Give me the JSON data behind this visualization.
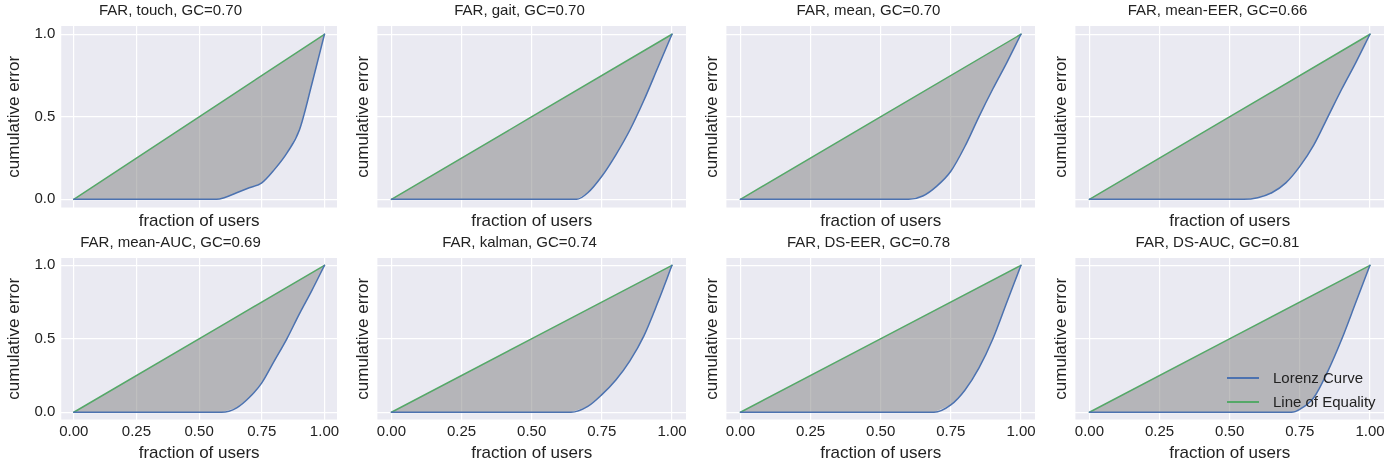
{
  "chart_data": [
    {
      "type": "line",
      "title": "FAR, touch, GC=0.70",
      "xlabel": "fraction of users",
      "ylabel": "cumulative error",
      "xlim": [
        -0.05,
        1.05
      ],
      "ylim": [
        -0.05,
        1.05
      ],
      "xticks": [
        0,
        0.25,
        0.5,
        0.75,
        1
      ],
      "yticks": [
        {
          "value": 0,
          "label": "0.0"
        },
        {
          "value": 0.5,
          "label": "0.5"
        },
        {
          "value": 1,
          "label": "1.0"
        }
      ],
      "tick_labels": "y",
      "grid": true,
      "legend": false,
      "series": [
        {
          "color": "#4c72b0",
          "x": [
            0,
            0.57,
            0.6,
            0.65,
            0.7,
            0.75,
            0.8,
            0.85,
            0.9,
            0.95,
            1
          ],
          "values": [
            0,
            0,
            0.01,
            0.04,
            0.07,
            0.1,
            0.18,
            0.28,
            0.42,
            0.7,
            1
          ]
        },
        {
          "color": "#55a868",
          "x": [
            0,
            1
          ],
          "values": [
            0,
            1
          ]
        }
      ]
    },
    {
      "type": "line",
      "title": "FAR, gait, GC=0.70",
      "xlabel": "fraction of users",
      "ylabel": "cumulative error",
      "xlim": [
        -0.05,
        1.05
      ],
      "ylim": [
        -0.05,
        1.05
      ],
      "xticks": [
        0,
        0.25,
        0.5,
        0.75,
        1
      ],
      "yticks": [
        0,
        0.5,
        1
      ],
      "tick_labels": false,
      "grid": true,
      "legend": false,
      "series": [
        {
          "color": "#4c72b0",
          "x": [
            0,
            0.66,
            0.7,
            0.75,
            0.8,
            0.85,
            0.9,
            0.95,
            1
          ],
          "values": [
            0,
            0,
            0.04,
            0.14,
            0.27,
            0.42,
            0.6,
            0.8,
            1
          ]
        },
        {
          "color": "#55a868",
          "x": [
            0,
            1
          ],
          "values": [
            0,
            1
          ]
        }
      ]
    },
    {
      "type": "line",
      "title": "FAR, mean, GC=0.70",
      "xlabel": "fraction of users",
      "ylabel": "cumulative error",
      "xlim": [
        -0.05,
        1.05
      ],
      "ylim": [
        -0.05,
        1.05
      ],
      "xticks": [
        0,
        0.25,
        0.5,
        0.75,
        1
      ],
      "yticks": [
        0,
        0.5,
        1
      ],
      "tick_labels": false,
      "grid": true,
      "legend": false,
      "series": [
        {
          "color": "#4c72b0",
          "x": [
            0,
            0.6,
            0.65,
            0.7,
            0.75,
            0.8,
            0.85,
            0.9,
            0.95,
            1
          ],
          "values": [
            0,
            0,
            0.02,
            0.08,
            0.17,
            0.32,
            0.5,
            0.67,
            0.83,
            1
          ]
        },
        {
          "color": "#55a868",
          "x": [
            0,
            1
          ],
          "values": [
            0,
            1
          ]
        }
      ]
    },
    {
      "type": "line",
      "title": "FAR, mean-EER, GC=0.66",
      "xlabel": "fraction of users",
      "ylabel": "cumulative error",
      "xlim": [
        -0.05,
        1.05
      ],
      "ylim": [
        -0.05,
        1.05
      ],
      "xticks": [
        0,
        0.25,
        0.5,
        0.75,
        1
      ],
      "yticks": [
        0,
        0.5,
        1
      ],
      "tick_labels": false,
      "grid": true,
      "legend": false,
      "series": [
        {
          "color": "#4c72b0",
          "x": [
            0,
            0.55,
            0.6,
            0.65,
            0.7,
            0.75,
            0.8,
            0.85,
            0.9,
            0.95,
            1
          ],
          "values": [
            0,
            0,
            0.01,
            0.04,
            0.1,
            0.2,
            0.33,
            0.5,
            0.67,
            0.83,
            1
          ]
        },
        {
          "color": "#55a868",
          "x": [
            0,
            1
          ],
          "values": [
            0,
            1
          ]
        }
      ]
    },
    {
      "type": "line",
      "title": "FAR, mean-AUC, GC=0.69",
      "xlabel": "fraction of users",
      "ylabel": "cumulative error",
      "xlim": [
        -0.05,
        1.05
      ],
      "ylim": [
        -0.05,
        1.05
      ],
      "xticks": [
        {
          "value": 0,
          "label": "0.00"
        },
        {
          "value": 0.25,
          "label": "0.25"
        },
        {
          "value": 0.5,
          "label": "0.50"
        },
        {
          "value": 0.75,
          "label": "0.75"
        },
        {
          "value": 1,
          "label": "1.00"
        }
      ],
      "yticks": [
        {
          "value": 0,
          "label": "0.0"
        },
        {
          "value": 0.5,
          "label": "0.5"
        },
        {
          "value": 1,
          "label": "1.0"
        }
      ],
      "grid": true,
      "legend": false,
      "series": [
        {
          "color": "#4c72b0",
          "x": [
            0,
            0.59,
            0.65,
            0.7,
            0.75,
            0.8,
            0.85,
            0.9,
            0.95,
            1
          ],
          "values": [
            0,
            0,
            0.03,
            0.1,
            0.2,
            0.35,
            0.5,
            0.67,
            0.83,
            1
          ]
        },
        {
          "color": "#55a868",
          "x": [
            0,
            1
          ],
          "values": [
            0,
            1
          ]
        }
      ]
    },
    {
      "type": "line",
      "title": "FAR, kalman, GC=0.74",
      "xlabel": "fraction of users",
      "ylabel": "cumulative error",
      "xlim": [
        -0.05,
        1.05
      ],
      "ylim": [
        -0.05,
        1.05
      ],
      "xticks": [
        {
          "value": 0,
          "label": "0.00"
        },
        {
          "value": 0.25,
          "label": "0.25"
        },
        {
          "value": 0.5,
          "label": "0.50"
        },
        {
          "value": 0.75,
          "label": "0.75"
        },
        {
          "value": 1,
          "label": "1.00"
        }
      ],
      "yticks": [
        0,
        0.5,
        1
      ],
      "tick_labels": "x",
      "grid": true,
      "legend": false,
      "series": [
        {
          "color": "#4c72b0",
          "x": [
            0,
            0.64,
            0.7,
            0.75,
            0.8,
            0.85,
            0.9,
            0.95,
            1
          ],
          "values": [
            0,
            0,
            0.04,
            0.12,
            0.22,
            0.35,
            0.52,
            0.75,
            1
          ]
        },
        {
          "color": "#55a868",
          "x": [
            0,
            1
          ],
          "values": [
            0,
            1
          ]
        }
      ]
    },
    {
      "type": "line",
      "title": "FAR, DS-EER, GC=0.78",
      "xlabel": "fraction of users",
      "ylabel": "cumulative error",
      "xlim": [
        -0.05,
        1.05
      ],
      "ylim": [
        -0.05,
        1.05
      ],
      "xticks": [
        {
          "value": 0,
          "label": "0.00"
        },
        {
          "value": 0.25,
          "label": "0.25"
        },
        {
          "value": 0.5,
          "label": "0.50"
        },
        {
          "value": 0.75,
          "label": "0.75"
        },
        {
          "value": 1,
          "label": "1.00"
        }
      ],
      "yticks": [
        0,
        0.5,
        1
      ],
      "tick_labels": "x",
      "grid": true,
      "legend": false,
      "series": [
        {
          "color": "#4c72b0",
          "x": [
            0,
            0.69,
            0.75,
            0.8,
            0.85,
            0.9,
            0.95,
            1
          ],
          "values": [
            0,
            0,
            0.05,
            0.15,
            0.3,
            0.5,
            0.75,
            1
          ]
        },
        {
          "color": "#55a868",
          "x": [
            0,
            1
          ],
          "values": [
            0,
            1
          ]
        }
      ]
    },
    {
      "type": "line",
      "title": "FAR, DS-AUC, GC=0.81",
      "xlabel": "fraction of users",
      "ylabel": "cumulative error",
      "xlim": [
        -0.05,
        1.05
      ],
      "ylim": [
        -0.05,
        1.05
      ],
      "xticks": [
        {
          "value": 0,
          "label": "0.00"
        },
        {
          "value": 0.25,
          "label": "0.25"
        },
        {
          "value": 0.5,
          "label": "0.50"
        },
        {
          "value": 0.75,
          "label": "0.75"
        },
        {
          "value": 1,
          "label": "1.00"
        }
      ],
      "yticks": [
        0,
        0.5,
        1
      ],
      "tick_labels": "x",
      "grid": true,
      "legend": "bottom right",
      "series": [
        {
          "name": "Lorenz Curve",
          "color": "#4c72b0",
          "x": [
            0,
            0.72,
            0.75,
            0.8,
            0.85,
            0.9,
            0.95,
            1
          ],
          "values": [
            0,
            0,
            0.02,
            0.1,
            0.28,
            0.5,
            0.75,
            1
          ]
        },
        {
          "name": "Line of Equality",
          "color": "#55a868",
          "x": [
            0,
            1
          ],
          "values": [
            0,
            1
          ]
        }
      ]
    }
  ]
}
